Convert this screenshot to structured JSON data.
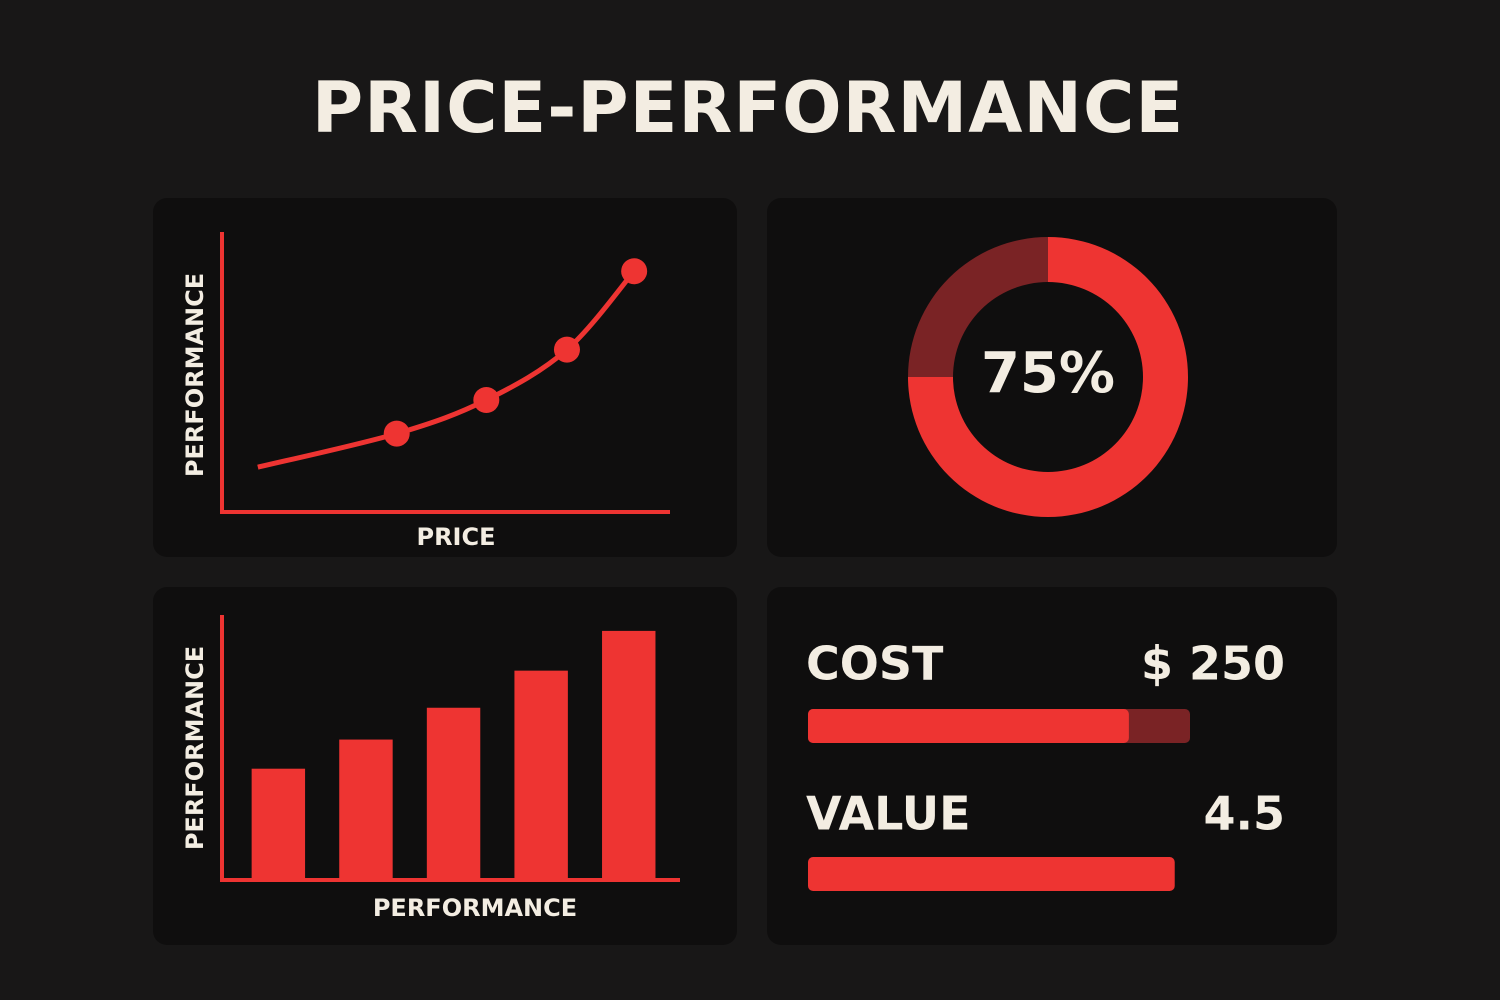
{
  "header": {
    "title": "PRICE-PERFORMANCE"
  },
  "chart_data": [
    {
      "type": "line",
      "x_label": "PRICE",
      "y_label": "PERFORMANCE",
      "x": [
        0.8,
        3.9,
        5.9,
        7.7,
        9.2
      ],
      "series": [
        {
          "color": "#ee3432",
          "values": [
            1.6,
            2.8,
            4.0,
            5.8,
            8.6
          ]
        }
      ],
      "markers": [
        false,
        true,
        true,
        true,
        true
      ],
      "xlim": [
        0,
        10
      ],
      "ylim": [
        0,
        10
      ],
      "axis_color": "#ee3432"
    },
    {
      "type": "donut",
      "values": [
        75,
        25
      ],
      "colors": [
        "#ee3432",
        "#7a2325"
      ],
      "center_label": "75%"
    },
    {
      "type": "bar",
      "x_label": "PERFORMANCE",
      "y_label": "PERFORMANCE",
      "categories": [
        null,
        null,
        null,
        null,
        null
      ],
      "values": [
        4.2,
        5.3,
        6.5,
        7.9,
        9.4
      ],
      "color": "#ee3432",
      "ylim": [
        0,
        10
      ],
      "axis_color": "#ee3432"
    },
    {
      "type": "progress",
      "labels": [
        "COST",
        "VALUE"
      ],
      "readouts": [
        "$ 250",
        "4.5"
      ],
      "values": [
        84,
        96
      ],
      "xlim": [
        0,
        100
      ],
      "color": "#ee3432",
      "track_colors": [
        "#7a2325",
        null
      ]
    }
  ]
}
